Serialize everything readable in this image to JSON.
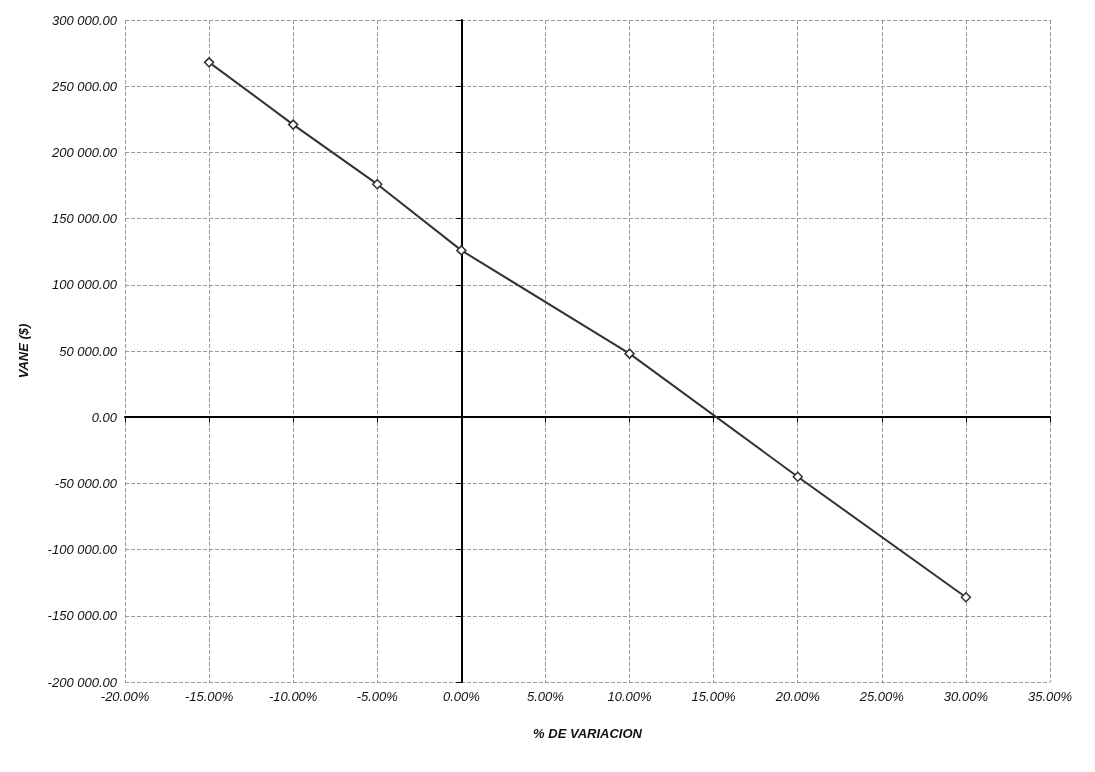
{
  "chart_data": {
    "type": "line",
    "xlabel": "% DE VARIACION",
    "ylabel": "VANE ($)",
    "x": [
      -15,
      -10,
      -5,
      0,
      10,
      20,
      30
    ],
    "series": [
      {
        "color": "#333333",
        "values": [
          268000,
          221000,
          176000,
          126000,
          48000,
          -45000,
          -136000
        ]
      }
    ],
    "xlim": [
      -20,
      35
    ],
    "xticks": [
      {
        "value": -20,
        "label": "-20.00%"
      },
      {
        "value": -15,
        "label": "-15.00%"
      },
      {
        "value": -10,
        "label": "-10.00%"
      },
      {
        "value": -5,
        "label": "-5.00%"
      },
      {
        "value": 0,
        "label": "0.00%"
      },
      {
        "value": 5,
        "label": "5.00%"
      },
      {
        "value": 10,
        "label": "10.00%"
      },
      {
        "value": 15,
        "label": "15.00%"
      },
      {
        "value": 20,
        "label": "20.00%"
      },
      {
        "value": 25,
        "label": "25.00%"
      },
      {
        "value": 30,
        "label": "30.00%"
      },
      {
        "value": 35,
        "label": "35.00%"
      }
    ],
    "ylim": [
      -200000,
      300000
    ],
    "yticks": [
      {
        "value": -200000,
        "label": "-200 000.00"
      },
      {
        "value": -150000,
        "label": "-150 000.00"
      },
      {
        "value": -100000,
        "label": "-100 000.00"
      },
      {
        "value": -50000,
        "label": "-50 000.00"
      },
      {
        "value": 0,
        "label": "0.00"
      },
      {
        "value": 50000,
        "label": "50 000.00"
      },
      {
        "value": 100000,
        "label": "100 000.00"
      },
      {
        "value": 150000,
        "label": "150 000.00"
      },
      {
        "value": 200000,
        "label": "200 000.00"
      },
      {
        "value": 250000,
        "label": "250 000.00"
      },
      {
        "value": 300000,
        "label": "300 000.00"
      }
    ],
    "grid": true,
    "marker": "diamond",
    "line_style": "solid"
  }
}
